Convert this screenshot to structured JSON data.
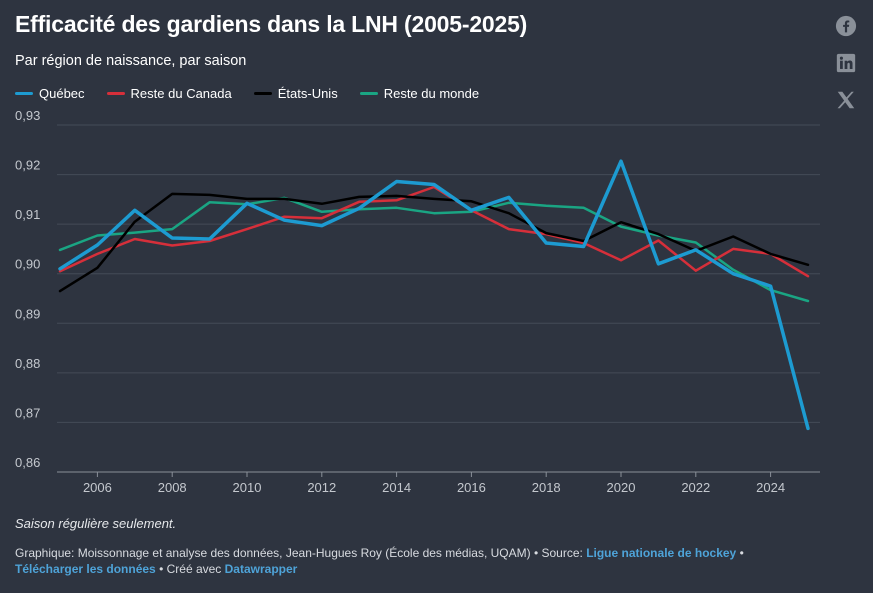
{
  "header": {
    "title": "Efficacité des gardiens dans la LNH (2005-2025)",
    "subtitle": "Par région de naissance, par saison"
  },
  "share": {
    "facebook_icon": "facebook-icon",
    "linkedin_icon": "linkedin-icon",
    "x_icon": "x-icon"
  },
  "chart_data": {
    "type": "line",
    "x": [
      2005,
      2006,
      2007,
      2008,
      2009,
      2010,
      2011,
      2012,
      2013,
      2014,
      2015,
      2016,
      2017,
      2018,
      2019,
      2020,
      2021,
      2022,
      2023,
      2024,
      2025
    ],
    "xticks": [
      2006,
      2008,
      2010,
      2012,
      2014,
      2016,
      2018,
      2020,
      2022,
      2024
    ],
    "yticks": [
      "0,86",
      "0,87",
      "0,88",
      "0,89",
      "0,90",
      "0,91",
      "0,92",
      "0,93"
    ],
    "ylim": [
      0.86,
      0.93
    ],
    "grid": true,
    "legend_position": "top-left",
    "series": [
      {
        "name": "Reste du monde",
        "color": "#1aa583",
        "width": 2.5,
        "values": [
          0.9048,
          0.9077,
          0.9083,
          0.909,
          0.9144,
          0.914,
          0.9153,
          0.9125,
          0.913,
          0.9133,
          0.9122,
          0.9125,
          0.9143,
          0.9137,
          0.9133,
          0.9095,
          0.9077,
          0.9063,
          0.9008,
          0.8967,
          0.8945
        ]
      },
      {
        "name": "Reste du Canada",
        "color": "#d62f3a",
        "width": 2.5,
        "values": [
          0.9005,
          0.904,
          0.907,
          0.9057,
          0.9066,
          0.909,
          0.9115,
          0.9112,
          0.9145,
          0.9148,
          0.9175,
          0.9128,
          0.909,
          0.908,
          0.9062,
          0.9027,
          0.9067,
          0.9006,
          0.905,
          0.904,
          0.8995
        ]
      },
      {
        "name": "États-Unis",
        "color": "#000000",
        "width": 2.5,
        "values": [
          0.8965,
          0.9012,
          0.9105,
          0.9161,
          0.9159,
          0.9151,
          0.9151,
          0.9141,
          0.9155,
          0.9157,
          0.9151,
          0.9146,
          0.9122,
          0.9082,
          0.9066,
          0.9104,
          0.908,
          0.9046,
          0.9075,
          0.904,
          0.9018
        ]
      },
      {
        "name": "Québec",
        "color": "#1d9bd1",
        "width": 3.5,
        "values": [
          0.901,
          0.9058,
          0.9128,
          0.9072,
          0.907,
          0.9142,
          0.9108,
          0.9097,
          0.9132,
          0.9186,
          0.918,
          0.9128,
          0.9154,
          0.9062,
          0.9055,
          0.9227,
          0.902,
          0.9048,
          0.9,
          0.8975,
          0.8688
        ]
      }
    ],
    "legend_order": [
      "Québec",
      "Reste du Canada",
      "États-Unis",
      "Reste du monde"
    ]
  },
  "note": "Saison régulière seulement.",
  "footer": {
    "graphic_label": "Graphique: Moissonnage et analyse des données, Jean-Hugues Roy (École des médias, UQAM) • Source:",
    "source_link": "Ligue nationale de hockey",
    "separator": " •",
    "download_link": "Télécharger les données",
    "created_with": " • Créé avec",
    "datawrapper_link": "Datawrapper"
  },
  "colors": {
    "background": "#2e3440",
    "grid": "#444b57",
    "axis_text": "#c4c8ce",
    "link": "#4ea3d8"
  }
}
